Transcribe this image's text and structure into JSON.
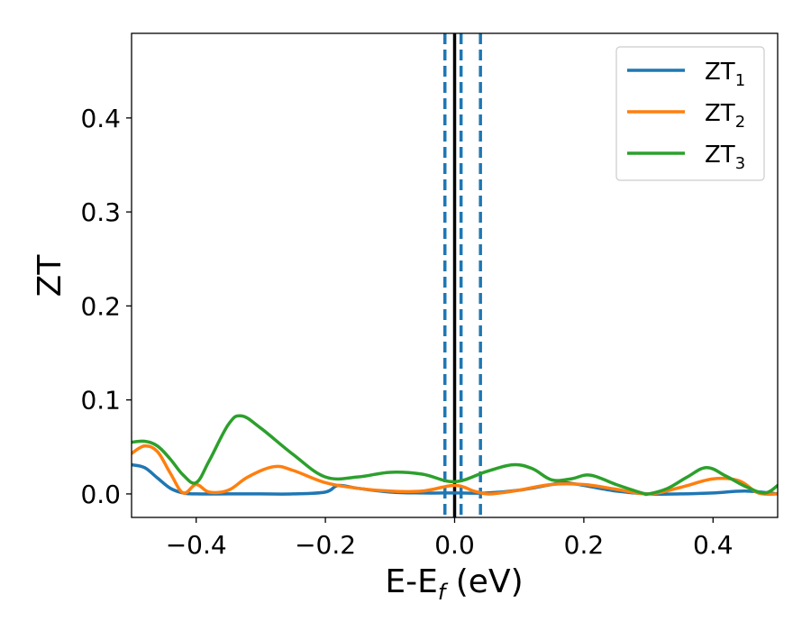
{
  "chart_data": {
    "type": "line",
    "xlabel_main": "E-E",
    "xlabel_sub": "f",
    "xlabel_unit": " (eV)",
    "ylabel": "ZT",
    "xlim": [
      -0.5,
      0.5
    ],
    "ylim": [
      -0.025,
      0.49
    ],
    "xticks": [
      -0.4,
      -0.2,
      0.0,
      0.2,
      0.4
    ],
    "xtick_labels": [
      "−0.4",
      "−0.2",
      "0.0",
      "0.2",
      "0.4"
    ],
    "yticks": [
      0.0,
      0.1,
      0.2,
      0.3,
      0.4
    ],
    "ytick_labels": [
      "0.0",
      "0.1",
      "0.2",
      "0.3",
      "0.4"
    ],
    "grid": false,
    "legend_position": "top-right",
    "vlines": [
      {
        "x": 0.0,
        "style": "solid",
        "color": "#000000"
      },
      {
        "x": -0.015,
        "style": "dashed",
        "color": "#1f77b4"
      },
      {
        "x": 0.01,
        "style": "dashed",
        "color": "#1f77b4"
      },
      {
        "x": 0.04,
        "style": "dashed",
        "color": "#1f77b4"
      }
    ],
    "series": [
      {
        "name_main": "ZT",
        "name_sub": "1",
        "color": "#1f77b4",
        "x": [
          -0.5,
          -0.48,
          -0.46,
          -0.44,
          -0.42,
          -0.4,
          -0.35,
          -0.3,
          -0.25,
          -0.2,
          -0.18,
          -0.15,
          -0.1,
          -0.05,
          0.0,
          0.05,
          0.1,
          0.15,
          0.17,
          0.2,
          0.25,
          0.3,
          0.35,
          0.4,
          0.45,
          0.5
        ],
        "y": [
          0.031,
          0.028,
          0.017,
          0.006,
          0.001,
          0.0,
          0.0,
          0.0,
          0.0,
          0.002,
          0.009,
          0.006,
          0.002,
          0.001,
          0.001,
          0.001,
          0.004,
          0.01,
          0.012,
          0.009,
          0.003,
          0.0,
          0.0,
          0.001,
          0.003,
          0.0
        ]
      },
      {
        "name_main": "ZT",
        "name_sub": "2",
        "color": "#ff7f0e",
        "x": [
          -0.5,
          -0.48,
          -0.46,
          -0.44,
          -0.42,
          -0.4,
          -0.38,
          -0.35,
          -0.32,
          -0.28,
          -0.25,
          -0.2,
          -0.15,
          -0.1,
          -0.05,
          0.0,
          0.03,
          0.05,
          0.07,
          0.1,
          0.15,
          0.2,
          0.25,
          0.3,
          0.35,
          0.4,
          0.44,
          0.47,
          0.5
        ],
        "y": [
          0.043,
          0.051,
          0.045,
          0.022,
          0.001,
          0.01,
          0.002,
          0.004,
          0.018,
          0.029,
          0.025,
          0.012,
          0.006,
          0.003,
          0.003,
          0.009,
          0.003,
          0.0,
          0.001,
          0.004,
          0.01,
          0.01,
          0.005,
          0.0,
          0.007,
          0.016,
          0.014,
          0.001,
          0.0
        ]
      },
      {
        "name_main": "ZT",
        "name_sub": "3",
        "color": "#2ca02c",
        "x": [
          -0.5,
          -0.48,
          -0.46,
          -0.44,
          -0.42,
          -0.4,
          -0.38,
          -0.35,
          -0.33,
          -0.3,
          -0.25,
          -0.2,
          -0.15,
          -0.1,
          -0.05,
          0.0,
          0.05,
          0.09,
          0.12,
          0.15,
          0.18,
          0.21,
          0.25,
          0.29,
          0.3,
          0.33,
          0.36,
          0.39,
          0.42,
          0.45,
          0.48,
          0.5
        ],
        "y": [
          0.055,
          0.056,
          0.051,
          0.037,
          0.02,
          0.012,
          0.035,
          0.074,
          0.083,
          0.07,
          0.042,
          0.018,
          0.018,
          0.023,
          0.021,
          0.013,
          0.024,
          0.031,
          0.027,
          0.015,
          0.016,
          0.02,
          0.01,
          0.001,
          0.0,
          0.006,
          0.018,
          0.028,
          0.019,
          0.008,
          0.001,
          0.009
        ]
      }
    ]
  }
}
